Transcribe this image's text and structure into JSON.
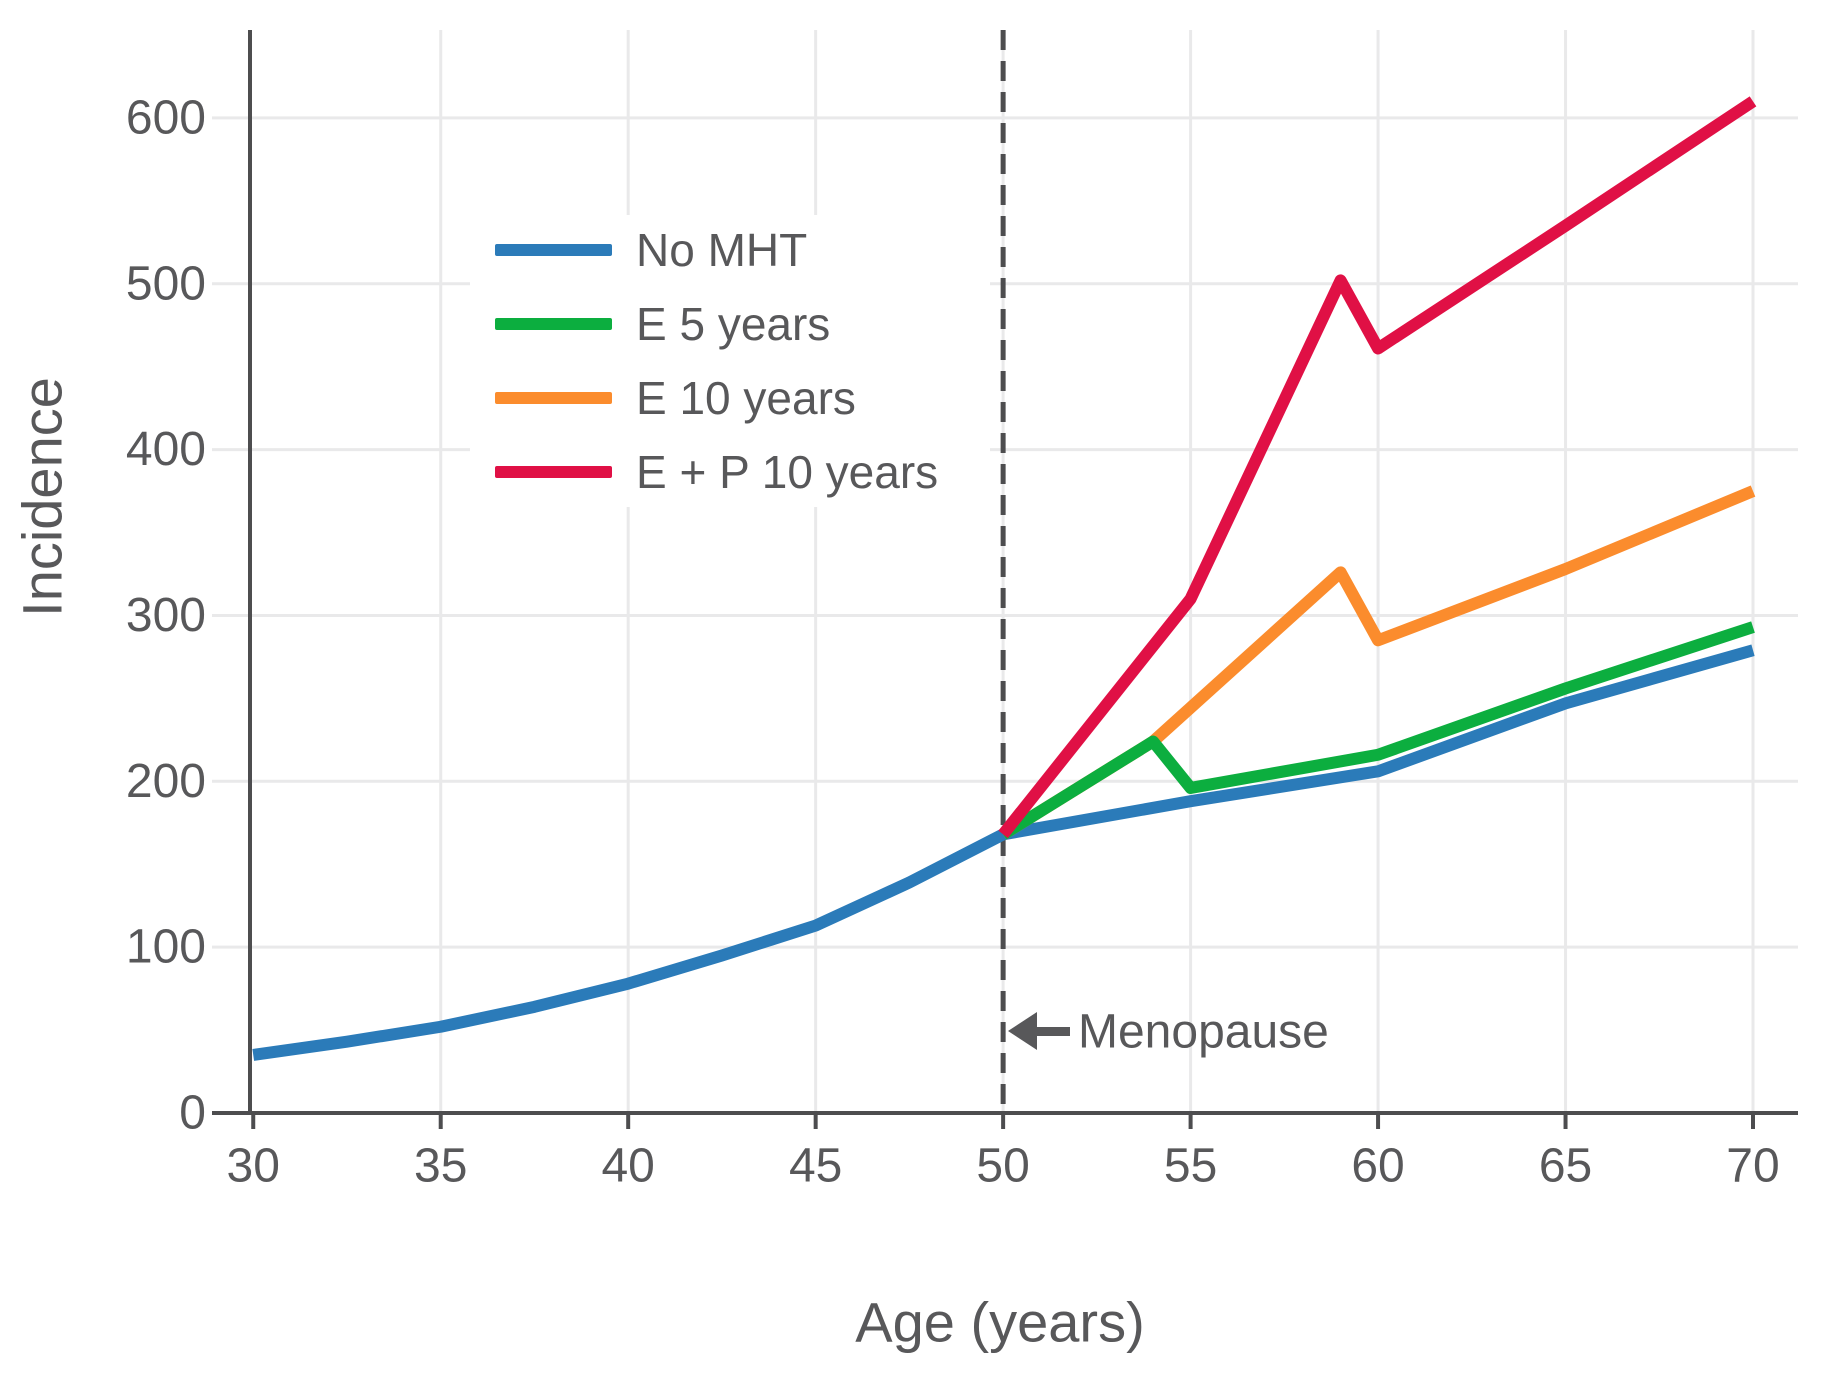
{
  "chart_data": {
    "type": "line",
    "title": "",
    "xlabel": "Age (years)",
    "ylabel": "Incidence",
    "xlim": [
      28.9,
      71.2
    ],
    "ylim": [
      0,
      653
    ],
    "x_ticks": [
      30,
      35,
      40,
      45,
      50,
      55,
      60,
      65,
      70
    ],
    "y_ticks": [
      0,
      100,
      200,
      300,
      400,
      500,
      600
    ],
    "grid": true,
    "legend_position": "upper-left-inside",
    "series": [
      {
        "name": "No MHT",
        "color": "#2b7bb9",
        "points": [
          [
            30,
            35
          ],
          [
            32.5,
            43
          ],
          [
            35,
            52
          ],
          [
            37.5,
            64
          ],
          [
            40,
            78
          ],
          [
            42.5,
            95
          ],
          [
            45,
            113
          ],
          [
            47.5,
            139
          ],
          [
            50,
            168
          ],
          [
            55,
            188
          ],
          [
            60,
            206
          ],
          [
            65,
            247
          ],
          [
            70,
            279
          ]
        ]
      },
      {
        "name": "E 5 years",
        "color": "#0cae3f",
        "points": [
          [
            50,
            168
          ],
          [
            54,
            224
          ],
          [
            55,
            196
          ],
          [
            60,
            216
          ],
          [
            65,
            256
          ],
          [
            70,
            293
          ]
        ]
      },
      {
        "name": "E 10 years",
        "color": "#fb8c2d",
        "points": [
          [
            50,
            168
          ],
          [
            54,
            224
          ],
          [
            59,
            326
          ],
          [
            60,
            285
          ],
          [
            65,
            328
          ],
          [
            70,
            375
          ]
        ]
      },
      {
        "name": "E + P 10 years",
        "color": "#e01045",
        "points": [
          [
            50,
            168
          ],
          [
            55,
            310
          ],
          [
            59,
            502
          ],
          [
            60,
            461
          ],
          [
            65,
            535
          ],
          [
            70,
            610
          ]
        ]
      }
    ],
    "vline": {
      "x": 50,
      "style": "dashed"
    },
    "annotation": {
      "text": "Menopause",
      "arrow": "left",
      "at_x": 50
    }
  },
  "colors": {
    "text": "#58585a",
    "axis": "#4d4d4f",
    "grid": "#e9e9ea",
    "dashed_line": "#4d4d4f",
    "arrow": "#58585a",
    "background": "#ffffff"
  }
}
